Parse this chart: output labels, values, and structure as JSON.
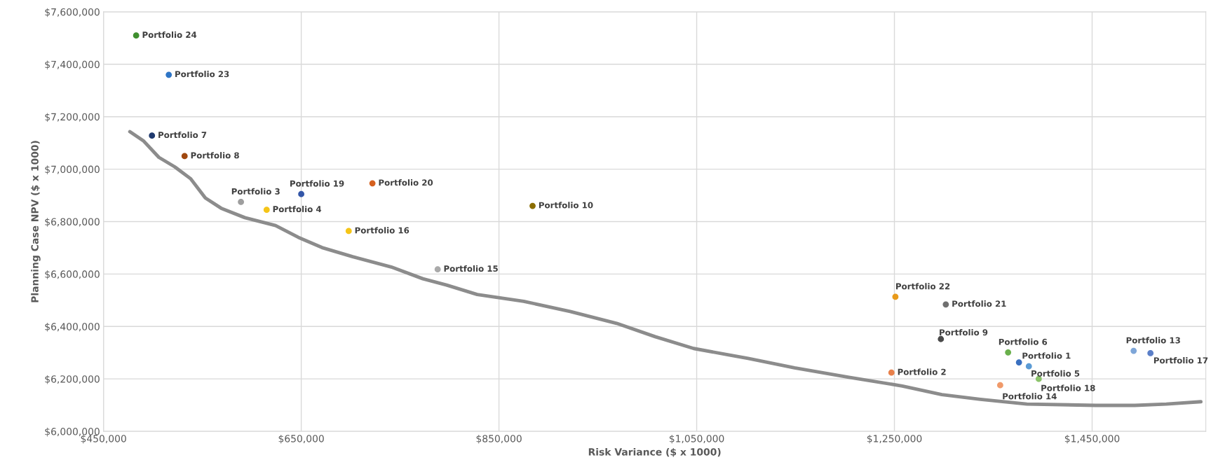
{
  "chart_data": {
    "type": "scatter",
    "xlabel": "Risk Variance ($ x 1000)",
    "ylabel": "Planning Case NPV ($ x 1000)",
    "xlim": [
      450000,
      1565000
    ],
    "ylim": [
      6000000,
      7600000
    ],
    "xticks": [
      {
        "value": 450000,
        "label": "$450,000"
      },
      {
        "value": 650000,
        "label": "$650,000"
      },
      {
        "value": 850000,
        "label": "$850,000"
      },
      {
        "value": 1050000,
        "label": "$1,050,000"
      },
      {
        "value": 1250000,
        "label": "$1,250,000"
      },
      {
        "value": 1450000,
        "label": "$1,450,000"
      }
    ],
    "yticks": [
      {
        "value": 6000000,
        "label": "$6,000,000"
      },
      {
        "value": 6200000,
        "label": "$6,200,000"
      },
      {
        "value": 6400000,
        "label": "$6,400,000"
      },
      {
        "value": 6600000,
        "label": "$6,600,000"
      },
      {
        "value": 6800000,
        "label": "$6,800,000"
      },
      {
        "value": 7000000,
        "label": "$7,000,000"
      },
      {
        "value": 7200000,
        "label": "$7,200,000"
      },
      {
        "value": 7400000,
        "label": "$7,400,000"
      },
      {
        "value": 7600000,
        "label": "$7,600,000"
      }
    ],
    "grid": true,
    "legend": false,
    "marker": "circle",
    "series": [
      {
        "x": [
          483000,
          516000,
          499000,
          532000,
          589000,
          615000,
          650000,
          722000,
          698000,
          788000,
          884000,
          1251000,
          1302000,
          1297000,
          1247000,
          1365000,
          1376000,
          1386000,
          1396000,
          1357000,
          1492000,
          1509000
        ],
        "values": [
          7510000,
          7360000,
          7128000,
          7050000,
          6875000,
          6845000,
          6905000,
          6946000,
          6764000,
          6618000,
          6860000,
          6513000,
          6484000,
          6352000,
          6224000,
          6301000,
          6263000,
          6248000,
          6200000,
          6176000,
          6307000,
          6298000
        ],
        "colors": [
          "#3f8f2f",
          "#2e75c6",
          "#1f3a6e",
          "#a0480f",
          "#9e9e9e",
          "#f5c518",
          "#3356a8",
          "#d5601e",
          "#f5c518",
          "#aaaaaa",
          "#8b6d00",
          "#e89a1a",
          "#707070",
          "#4a4a4a",
          "#e8804a",
          "#6ab04c",
          "#3a70c0",
          "#5b9bd5",
          "#8bc36a",
          "#f09a6a",
          "#7ea6d8",
          "#5b7fc8"
        ]
      },
      {
        "type": "line",
        "color": "#8c8c8c",
        "marker": "none",
        "x": [
          476600,
          490700,
          506000,
          522000,
          538000,
          553000,
          569000,
          593000,
          624000,
          647000,
          671000,
          702000,
          741000,
          773000,
          797000,
          828000,
          875000,
          922000,
          969000,
          1008000,
          1047000,
          1102000,
          1149000,
          1204000,
          1258000,
          1298000,
          1337000,
          1384000,
          1454000,
          1493000,
          1525000,
          1560000
        ],
        "values": [
          7143000,
          7107000,
          7045000,
          7009000,
          6964000,
          6890000,
          6851000,
          6815000,
          6785000,
          6740000,
          6701000,
          6666000,
          6627000,
          6582000,
          6558000,
          6522000,
          6496000,
          6457000,
          6412000,
          6361000,
          6316000,
          6278000,
          6242000,
          6206000,
          6173000,
          6140000,
          6122000,
          6104000,
          6099000,
          6099000,
          6104000,
          6113000
        ]
      }
    ],
    "annotations": [
      {
        "text": "Portfolio 24",
        "x": 483000,
        "y": 7510000
      },
      {
        "text": "Portfolio 23",
        "x": 516000,
        "y": 7360000
      },
      {
        "text": "Portfolio 7",
        "x": 499000,
        "y": 7128000
      },
      {
        "text": "Portfolio 8",
        "x": 532000,
        "y": 7050000
      },
      {
        "text": "Portfolio 3",
        "x": 589000,
        "y": 6875000
      },
      {
        "text": "Portfolio 4",
        "x": 615000,
        "y": 6845000
      },
      {
        "text": "Portfolio 19",
        "x": 650000,
        "y": 6905000
      },
      {
        "text": "Portfolio 20",
        "x": 722000,
        "y": 6946000
      },
      {
        "text": "Portfolio 16",
        "x": 698000,
        "y": 6764000
      },
      {
        "text": "Portfolio 15",
        "x": 788000,
        "y": 6618000
      },
      {
        "text": "Portfolio 10",
        "x": 884000,
        "y": 6860000
      },
      {
        "text": "Portfolio 22",
        "x": 1251000,
        "y": 6513000
      },
      {
        "text": "Portfolio 21",
        "x": 1302000,
        "y": 6484000
      },
      {
        "text": "Portfolio 9",
        "x": 1297000,
        "y": 6352000
      },
      {
        "text": "Portfolio 2",
        "x": 1247000,
        "y": 6224000
      },
      {
        "text": "Portfolio 6",
        "x": 1365000,
        "y": 6301000
      },
      {
        "text": "Portfolio 1",
        "x": 1376000,
        "y": 6263000
      },
      {
        "text": "Portfolio 5",
        "x": 1386000,
        "y": 6248000
      },
      {
        "text": "Portfolio 18",
        "x": 1396000,
        "y": 6200000
      },
      {
        "text": "Portfolio 14",
        "x": 1357000,
        "y": 6176000
      },
      {
        "text": "Portfolio 13",
        "x": 1492000,
        "y": 6307000
      },
      {
        "text": "Portfolio 17",
        "x": 1509000,
        "y": 6298000
      }
    ]
  }
}
